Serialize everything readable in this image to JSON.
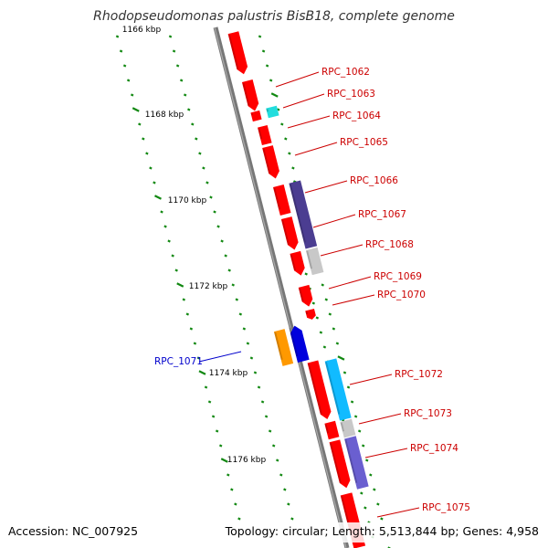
{
  "title": "Rhodopseudomonas palustris BisB18, complete genome",
  "footer": {
    "accession": "Accession: NC_007925",
    "topology": "Topology: circular; Length: 5,513,844 bp; Genes: 4,958"
  },
  "colors": {
    "backbone": "#808080",
    "gene_forward": "#ff0000",
    "gene_reverse": "#0000dd",
    "label_forward": "#cc0000",
    "label_reverse": "#0000cc",
    "tick": "#118811"
  },
  "kbp_ticks": [
    {
      "label": "1166 kbp"
    },
    {
      "label": "1168 kbp"
    },
    {
      "label": "1170 kbp"
    },
    {
      "label": "1172 kbp"
    },
    {
      "label": "1174 kbp"
    },
    {
      "label": "1176 kbp"
    }
  ],
  "gene_labels": [
    {
      "text": "RPC_1062",
      "strand": "forward"
    },
    {
      "text": "RPC_1063",
      "strand": "forward"
    },
    {
      "text": "RPC_1064",
      "strand": "forward"
    },
    {
      "text": "RPC_1065",
      "strand": "forward"
    },
    {
      "text": "RPC_1066",
      "strand": "forward"
    },
    {
      "text": "RPC_1067",
      "strand": "forward"
    },
    {
      "text": "RPC_1068",
      "strand": "forward"
    },
    {
      "text": "RPC_1069",
      "strand": "forward"
    },
    {
      "text": "RPC_1070",
      "strand": "forward"
    },
    {
      "text": "RPC_1071",
      "strand": "reverse"
    },
    {
      "text": "RPC_1072",
      "strand": "forward"
    },
    {
      "text": "RPC_1073",
      "strand": "forward"
    },
    {
      "text": "RPC_1074",
      "strand": "forward"
    },
    {
      "text": "RPC_1075",
      "strand": "forward"
    }
  ]
}
